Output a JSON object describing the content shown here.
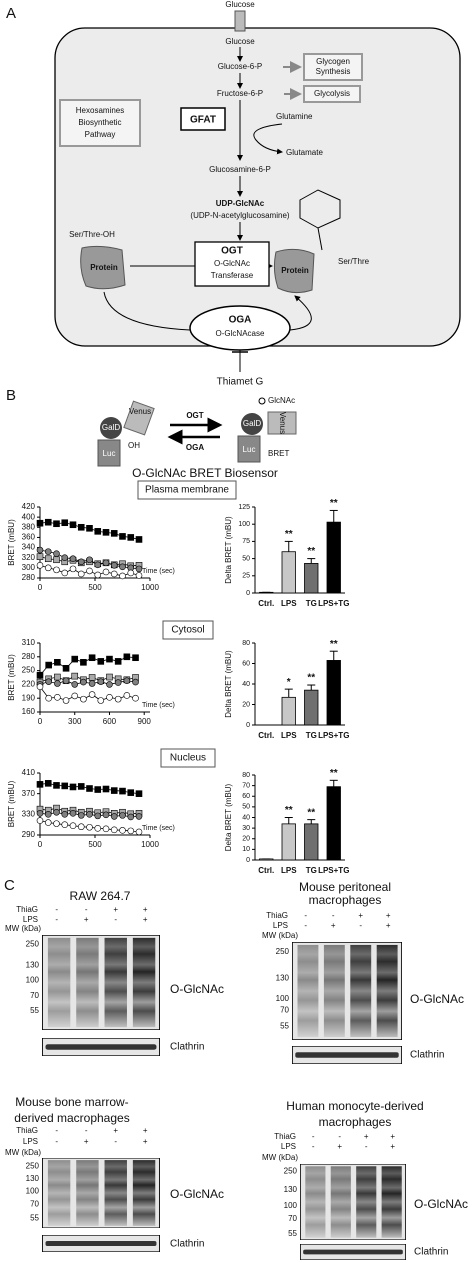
{
  "panel_a": {
    "label": "A",
    "glucose_in": "Glucose",
    "glucose": "Glucose",
    "g6p": "Glucose-6-P",
    "glycogen_1": "Glycogen",
    "glycogen_2": "Synthesis",
    "f6p": "Fructose-6-P",
    "glycolysis": "Glycolysis",
    "gfat": "GFAT",
    "glutamine": "Glutamine",
    "glutamate": "Glutamate",
    "hbp_1": "Hexosamines",
    "hbp_2": "Biosynthetic",
    "hbp_3": "Pathway",
    "gln6p": "Glucosamine-6-P",
    "udp": "UDP-GlcNAc",
    "udp_full": "(UDP-N-acetylglucosamine)",
    "ser_oh": "Ser/Thre-OH",
    "protein_left": "Protein",
    "protein_right": "Protein",
    "ser_right": "Ser/Thre",
    "ogt": "OGT",
    "ogt_2": "O-GlcNAc",
    "ogt_3": "Transferase",
    "oga": "OGA",
    "oga_2": "O-GlcNAcase",
    "thiamet": "Thiamet G"
  },
  "panel_b": {
    "label": "B",
    "venus_left": "Venus",
    "gald_left": "GalD",
    "luc_left": "Luc",
    "oh": "OH",
    "ogt": "OGT",
    "oga": "OGA",
    "glcnac": "GlcNAc",
    "gald_right": "GalD",
    "luc_right": "Luc",
    "bret": "BRET",
    "venus_right": "Venus",
    "title": "O-GlcNAc BRET Biosensor",
    "sections": [
      "Plasma membrane",
      "Cytosol",
      "Nucleus"
    ]
  },
  "chart_data": [
    {
      "type": "line",
      "x": [
        0,
        75,
        150,
        225,
        300,
        375,
        450,
        525,
        600,
        675,
        750,
        825,
        900
      ],
      "xlim": [
        0,
        1000
      ],
      "xticks": [
        0,
        500,
        1000
      ],
      "ylim": [
        280,
        420
      ],
      "yticks": [
        280,
        300,
        320,
        340,
        360,
        380,
        400,
        420
      ],
      "xlabel": "Time (sec)",
      "ylabel": "BRET (mBU)",
      "series": [
        {
          "color": "#000000",
          "marker": "square",
          "values": [
            388,
            390,
            387,
            389,
            385,
            380,
            378,
            372,
            370,
            368,
            362,
            360,
            356
          ]
        },
        {
          "color": "#aaaaaa",
          "marker": "square",
          "values": [
            322,
            318,
            316,
            312,
            315,
            310,
            312,
            308,
            310,
            306,
            308,
            304,
            305
          ]
        },
        {
          "color": "#808080",
          "marker": "circle",
          "values": [
            335,
            332,
            328,
            320,
            318,
            312,
            316,
            306,
            310,
            305,
            302,
            300,
            298
          ]
        },
        {
          "color": "#ffffff",
          "marker": "circle",
          "values": [
            305,
            300,
            296,
            290,
            298,
            288,
            294,
            286,
            292,
            288,
            284,
            290,
            285
          ]
        }
      ]
    },
    {
      "type": "bar",
      "categories": [
        "Ctrl.",
        "LPS",
        "TG",
        "LPS+TG"
      ],
      "values": [
        1,
        60,
        43,
        103
      ],
      "errors": [
        0,
        15,
        7,
        17
      ],
      "colors": [
        "#ffffff",
        "#c8c8c8",
        "#707070",
        "#000000"
      ],
      "annotations": [
        null,
        "**",
        "**",
        "**"
      ],
      "ylim": [
        0,
        125
      ],
      "yticks": [
        0,
        25,
        50,
        75,
        100,
        125
      ],
      "ylabel": "Delta BRET (mBU)"
    },
    {
      "type": "line",
      "x": [
        0,
        75,
        150,
        225,
        300,
        375,
        450,
        525,
        600,
        675,
        750,
        825
      ],
      "xlim": [
        0,
        950
      ],
      "xticks": [
        0,
        300,
        600,
        900
      ],
      "ylim": [
        160,
        310
      ],
      "yticks": [
        160,
        190,
        220,
        250,
        280,
        310
      ],
      "xlabel": "Time (sec)",
      "ylabel": "BRET (mBU)",
      "series": [
        {
          "color": "#000000",
          "marker": "square",
          "values": [
            240,
            262,
            268,
            255,
            275,
            268,
            278,
            270,
            275,
            270,
            280,
            278
          ]
        },
        {
          "color": "#aaaaaa",
          "marker": "square",
          "values": [
            225,
            232,
            236,
            228,
            238,
            230,
            235,
            228,
            236,
            232,
            230,
            235
          ]
        },
        {
          "color": "#808080",
          "marker": "circle",
          "values": [
            220,
            226,
            222,
            228,
            220,
            225,
            222,
            226,
            220,
            224,
            228,
            225
          ]
        },
        {
          "color": "#ffffff",
          "marker": "circle",
          "values": [
            215,
            190,
            192,
            185,
            195,
            188,
            198,
            185,
            192,
            188,
            196,
            190
          ]
        }
      ]
    },
    {
      "type": "bar",
      "categories": [
        "Ctrl.",
        "LPS",
        "TG",
        "LPS+TG"
      ],
      "values": [
        0,
        27,
        34,
        63
      ],
      "errors": [
        0,
        8,
        5,
        9
      ],
      "colors": [
        "#ffffff",
        "#c8c8c8",
        "#707070",
        "#000000"
      ],
      "annotations": [
        null,
        "*",
        "**",
        "**"
      ],
      "ylim": [
        0,
        80
      ],
      "yticks": [
        0,
        20,
        40,
        60,
        80
      ],
      "ylabel": "Delta BRET (mBU)"
    },
    {
      "type": "line",
      "x": [
        0,
        75,
        150,
        225,
        300,
        375,
        450,
        525,
        600,
        675,
        750,
        825,
        900
      ],
      "xlim": [
        0,
        1000
      ],
      "xticks": [
        0,
        500,
        1000
      ],
      "ylim": [
        290,
        410
      ],
      "yticks": [
        290,
        330,
        370,
        410
      ],
      "xlabel": "Time (sec)",
      "ylabel": "BRET (mBU)",
      "series": [
        {
          "color": "#000000",
          "marker": "square",
          "values": [
            388,
            390,
            386,
            385,
            383,
            384,
            380,
            378,
            379,
            376,
            375,
            372,
            370
          ]
        },
        {
          "color": "#aaaaaa",
          "marker": "square",
          "values": [
            340,
            338,
            342,
            336,
            338,
            334,
            336,
            333,
            335,
            332,
            334,
            331,
            332
          ]
        },
        {
          "color": "#808080",
          "marker": "circle",
          "values": [
            332,
            330,
            334,
            330,
            332,
            328,
            330,
            327,
            329,
            326,
            328,
            325,
            326
          ]
        },
        {
          "color": "#ffffff",
          "marker": "circle",
          "values": [
            318,
            314,
            312,
            310,
            308,
            306,
            305,
            303,
            302,
            300,
            299,
            298,
            296
          ]
        }
      ]
    },
    {
      "type": "bar",
      "categories": [
        "Ctrl.",
        "LPS",
        "TG",
        "LPS+TG"
      ],
      "values": [
        1,
        34,
        34,
        69
      ],
      "errors": [
        0,
        6,
        4,
        6
      ],
      "colors": [
        "#ffffff",
        "#c8c8c8",
        "#707070",
        "#000000"
      ],
      "annotations": [
        null,
        "**",
        "**",
        "**"
      ],
      "ylim": [
        0,
        80
      ],
      "yticks": [
        0,
        10,
        20,
        30,
        40,
        50,
        60,
        70,
        80
      ],
      "ylabel": "Delta BRET (mBU)"
    }
  ],
  "panel_c": {
    "label": "C",
    "blots": [
      {
        "title": [
          "RAW 264.7"
        ],
        "thiag": "ThiaG",
        "lps": "LPS",
        "thiag_signs": [
          "-",
          "-",
          "+",
          "+"
        ],
        "lps_signs": [
          "-",
          "+",
          "-",
          "+"
        ],
        "mw": "MW (kDa)",
        "markers": [
          "250",
          "130",
          "100",
          "70",
          "55"
        ],
        "target": "O-GlcNAc",
        "loading": "Clathrin"
      },
      {
        "title": [
          "Mouse peritoneal",
          "macrophages"
        ],
        "thiag": "ThiaG",
        "lps": "LPS",
        "thiag_signs": [
          "-",
          "-",
          "+",
          "+"
        ],
        "lps_signs": [
          "-",
          "+",
          "-",
          "+"
        ],
        "mw": "MW (kDa)",
        "markers": [
          "250",
          "130",
          "100",
          "70",
          "55"
        ],
        "target": "O-GlcNAc",
        "loading": "Clathrin"
      },
      {
        "title": [
          "Mouse bone marrow-",
          "derived macrophages"
        ],
        "thiag": "ThiaG",
        "lps": "LPS",
        "thiag_signs": [
          "-",
          "-",
          "+",
          "+"
        ],
        "lps_signs": [
          "-",
          "+",
          "-",
          "+"
        ],
        "mw": "MW (kDa)",
        "markers": [
          "250",
          "130",
          "100",
          "70",
          "55"
        ],
        "target": "O-GlcNAc",
        "loading": "Clathrin"
      },
      {
        "title": [
          "Human monocyte-derived",
          "macrophages"
        ],
        "thiag": "ThiaG",
        "lps": "LPS",
        "thiag_signs": [
          "-",
          "-",
          "+",
          "+"
        ],
        "lps_signs": [
          "-",
          "+",
          "-",
          "+"
        ],
        "mw": "MW (kDa)",
        "markers": [
          "250",
          "130",
          "100",
          "70",
          "55"
        ],
        "target": "O-GlcNAc",
        "loading": "Clathrin"
      }
    ]
  }
}
